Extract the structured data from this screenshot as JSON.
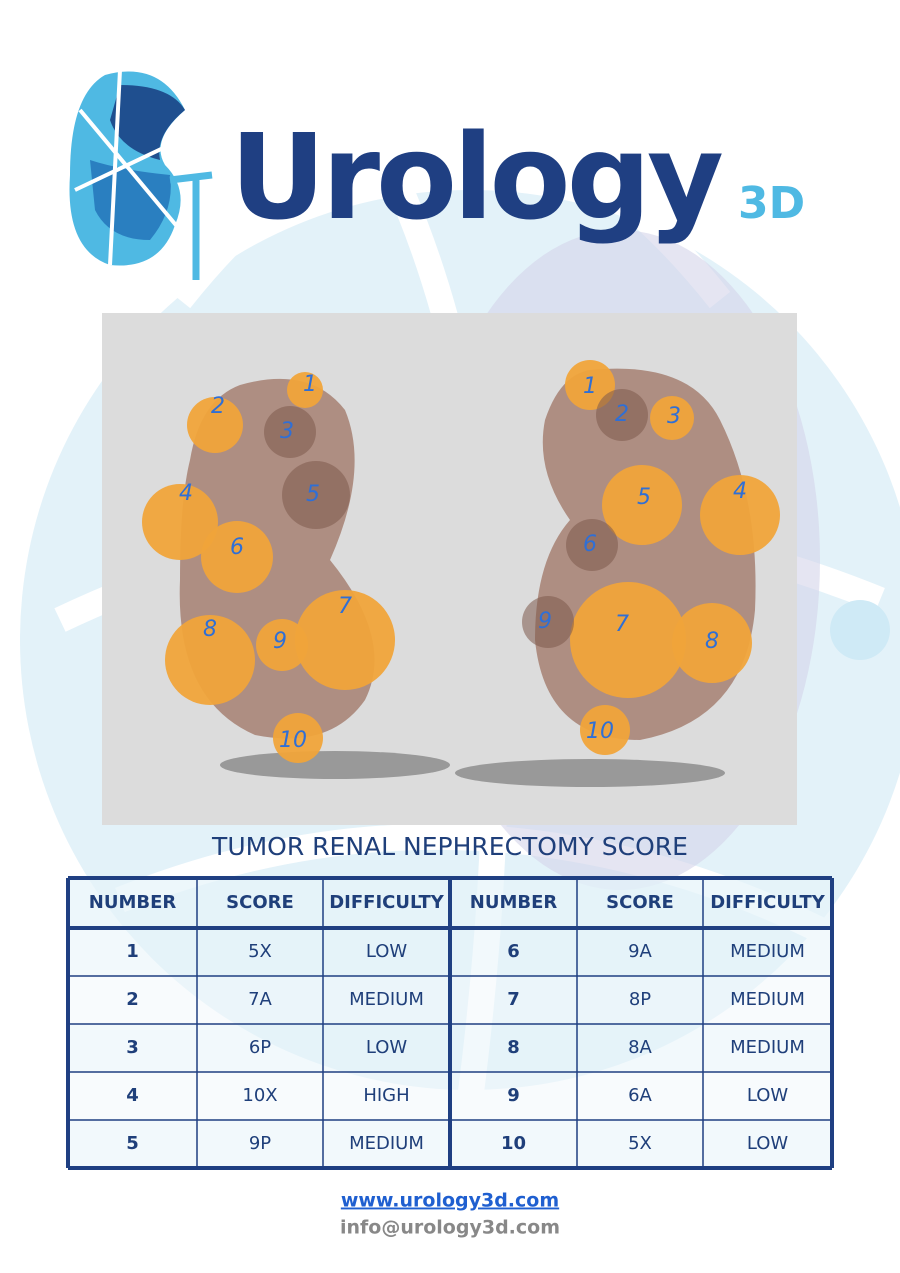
{
  "logo": {
    "name": "Urology",
    "suffix": "3D"
  },
  "figure": {
    "left_view_labels": [
      "1",
      "2",
      "3",
      "4",
      "5",
      "6",
      "7",
      "8",
      "9",
      "10"
    ],
    "right_view_labels": [
      "1",
      "2",
      "3",
      "4",
      "5",
      "6",
      "7",
      "8",
      "9",
      "10"
    ]
  },
  "title": "TUMOR RENAL NEPHRECTOMY SCORE",
  "table": {
    "headers": [
      "NUMBER",
      "SCORE",
      "DIFFICULTY",
      "NUMBER",
      "SCORE",
      "DIFFICULTY"
    ],
    "rows": [
      [
        "1",
        "5X",
        "LOW",
        "6",
        "9A",
        "MEDIUM"
      ],
      [
        "2",
        "7A",
        "MEDIUM",
        "7",
        "8P",
        "MEDIUM"
      ],
      [
        "3",
        "6P",
        "LOW",
        "8",
        "8A",
        "MEDIUM"
      ],
      [
        "4",
        "10X",
        "HIGH",
        "9",
        "6A",
        "LOW"
      ],
      [
        "5",
        "9P",
        "MEDIUM",
        "10",
        "5X",
        "LOW"
      ]
    ]
  },
  "footer": {
    "website": "www.urology3d.com",
    "email": "info@urology3d.com"
  }
}
